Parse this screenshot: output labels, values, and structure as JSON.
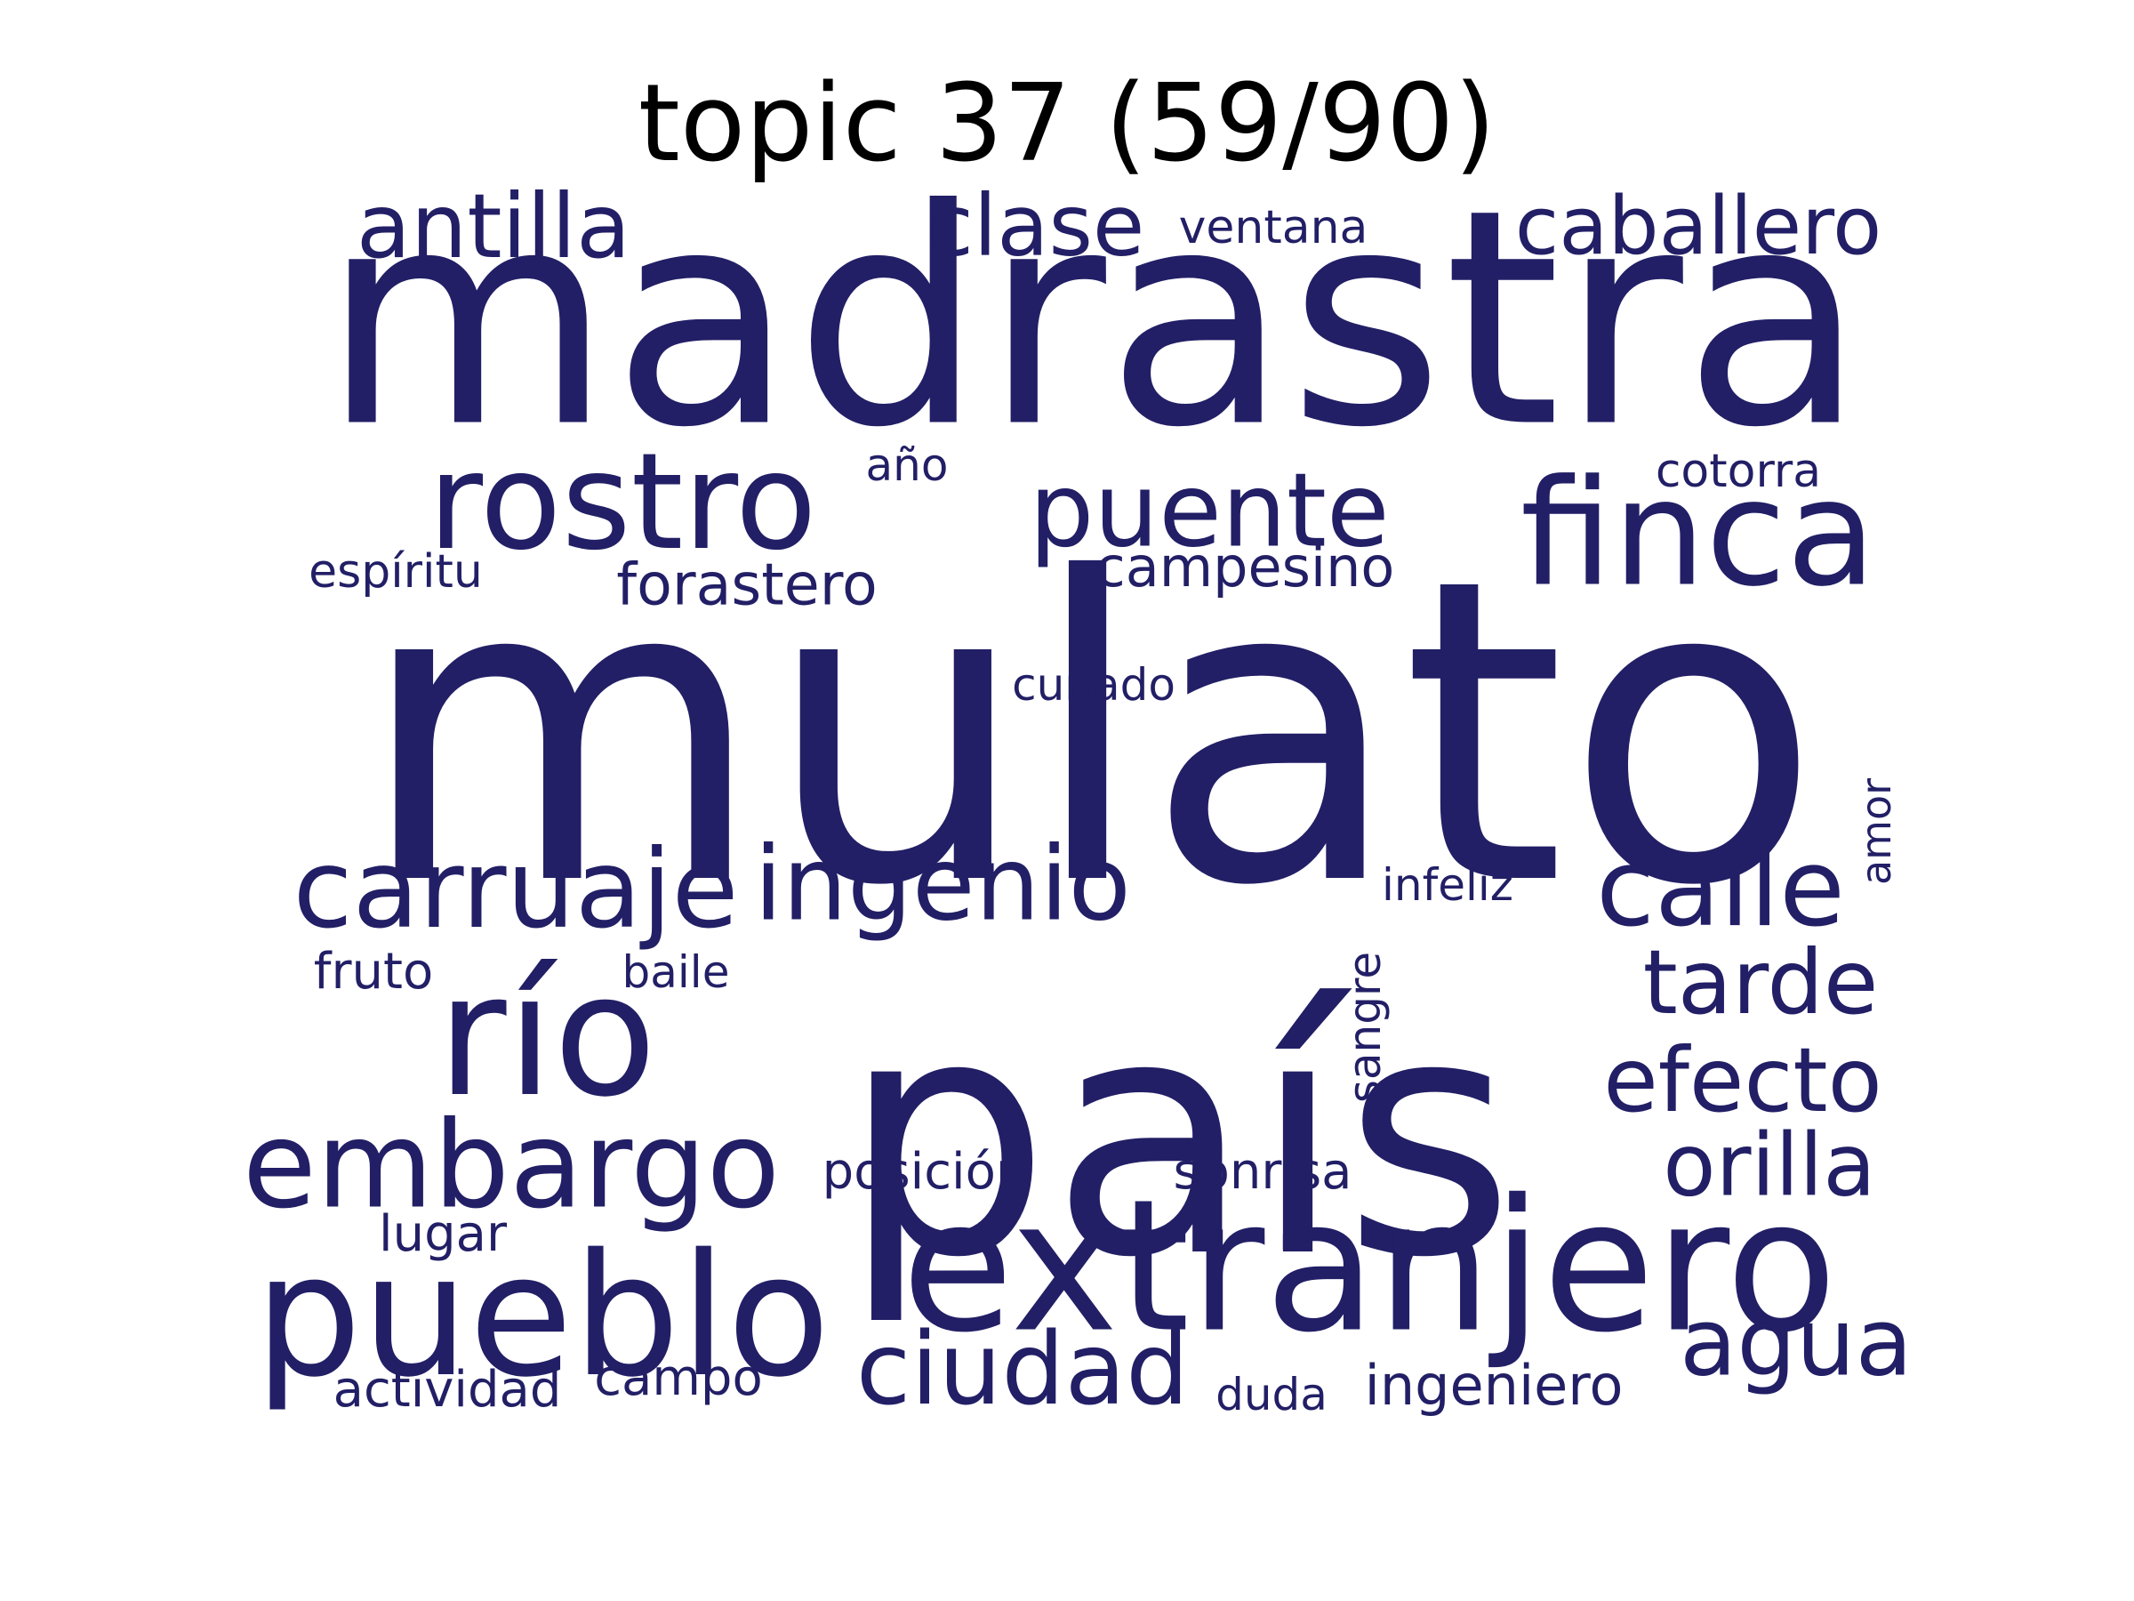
{
  "title": "topic 37 (59/90)",
  "colors": {
    "word": "#221f66",
    "title": "#000000",
    "background": "#ffffff"
  },
  "words": [
    {
      "text": "mulato",
      "weight": 1.0
    },
    {
      "text": "madrastra",
      "weight": 0.8
    },
    {
      "text": "país",
      "weight": 0.85
    },
    {
      "text": "extranjero",
      "weight": 0.45
    },
    {
      "text": "pueblo",
      "weight": 0.42
    },
    {
      "text": "río",
      "weight": 0.42
    },
    {
      "text": "finca",
      "weight": 0.36
    },
    {
      "text": "rostro",
      "weight": 0.33
    },
    {
      "text": "puente",
      "weight": 0.27
    },
    {
      "text": "embargo",
      "weight": 0.3
    },
    {
      "text": "carruaje",
      "weight": 0.27
    },
    {
      "text": "ingenio",
      "weight": 0.26
    },
    {
      "text": "calle",
      "weight": 0.27
    },
    {
      "text": "ciudad",
      "weight": 0.25
    },
    {
      "text": "agua",
      "weight": 0.24
    },
    {
      "text": "tarde",
      "weight": 0.23
    },
    {
      "text": "efecto",
      "weight": 0.23
    },
    {
      "text": "orilla",
      "weight": 0.22
    },
    {
      "text": "antilla",
      "weight": 0.23
    },
    {
      "text": "clase",
      "weight": 0.22
    },
    {
      "text": "caballero",
      "weight": 0.21
    },
    {
      "text": "forastero",
      "weight": 0.15
    },
    {
      "text": "campesino",
      "weight": 0.14
    },
    {
      "text": "ingeniero",
      "weight": 0.14
    },
    {
      "text": "posición",
      "weight": 0.13
    },
    {
      "text": "sonrisa",
      "weight": 0.13
    },
    {
      "text": "lugar",
      "weight": 0.13
    },
    {
      "text": "fruto",
      "weight": 0.13
    },
    {
      "text": "campo",
      "weight": 0.13
    },
    {
      "text": "actividad",
      "weight": 0.13
    },
    {
      "text": "cotorra",
      "weight": 0.12
    },
    {
      "text": "ventana",
      "weight": 0.12
    },
    {
      "text": "espíritu",
      "weight": 0.12
    },
    {
      "text": "año",
      "weight": 0.11
    },
    {
      "text": "cuñado",
      "weight": 0.11
    },
    {
      "text": "infeliz",
      "weight": 0.11
    },
    {
      "text": "baile",
      "weight": 0.11
    },
    {
      "text": "duda",
      "weight": 0.11
    },
    {
      "text": "sangre",
      "weight": 0.11
    },
    {
      "text": "amor",
      "weight": 0.1
    }
  ]
}
